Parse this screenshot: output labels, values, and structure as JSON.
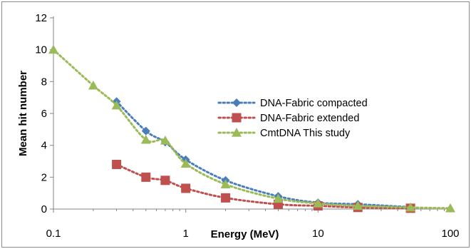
{
  "chart_data": {
    "type": "scatter",
    "title": "",
    "xlabel": "Energy (MeV)",
    "ylabel": "Mean hit number",
    "xscale": "log",
    "xlim": [
      0.1,
      100
    ],
    "ylim": [
      0,
      12
    ],
    "x_ticks": [
      0.1,
      1,
      10,
      100
    ],
    "x_tick_labels": [
      "0.1",
      "1",
      "10",
      "100"
    ],
    "y_ticks": [
      0,
      2,
      4,
      6,
      8,
      10,
      12
    ],
    "y_tick_labels": [
      "0",
      "2",
      "4",
      "6",
      "8",
      "10",
      "12"
    ],
    "grid": false,
    "legend_position": "right-middle",
    "series": [
      {
        "name": "DNA-Fabric compacted",
        "marker": "diamond",
        "line": "dotted",
        "color": "#4a7ebb",
        "x": [
          0.3,
          0.5,
          0.7,
          1,
          2,
          5,
          10,
          20,
          50
        ],
        "y": [
          6.75,
          4.9,
          4.2,
          3.1,
          1.8,
          0.8,
          0.4,
          0.3,
          0.12
        ]
      },
      {
        "name": "DNA-Fabric extended",
        "marker": "square",
        "line": "dotted",
        "color": "#c0504d",
        "x": [
          0.3,
          0.5,
          0.7,
          1,
          2,
          5,
          10,
          20,
          50
        ],
        "y": [
          2.8,
          2.0,
          1.8,
          1.3,
          0.7,
          0.3,
          0.2,
          0.1,
          0.05
        ]
      },
      {
        "name": "CmtDNA This study",
        "marker": "triangle",
        "line": "dotted",
        "color": "#9bbb59",
        "x": [
          0.1,
          0.2,
          0.3,
          0.5,
          0.7,
          1,
          2,
          5,
          10,
          20,
          50,
          100
        ],
        "y": [
          10.0,
          7.75,
          6.5,
          4.35,
          4.3,
          2.85,
          1.55,
          0.65,
          0.35,
          0.2,
          0.1,
          0.05
        ]
      }
    ]
  }
}
